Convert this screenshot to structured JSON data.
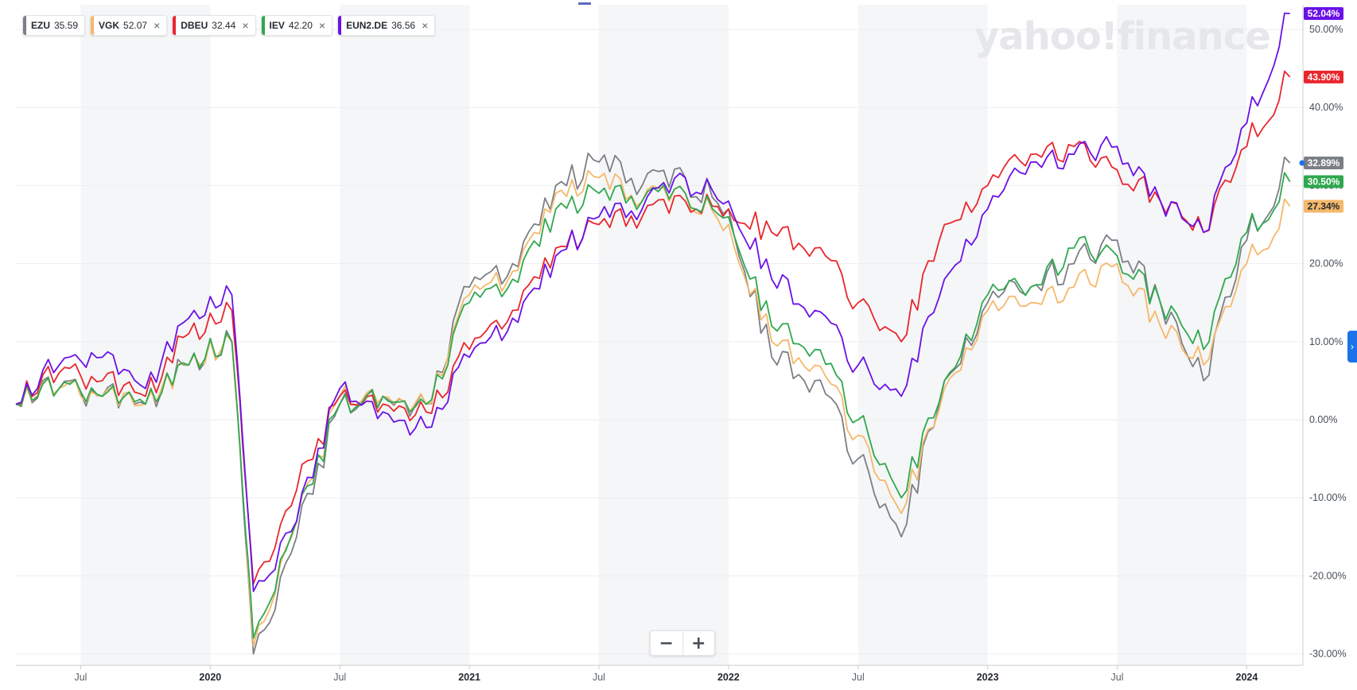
{
  "legend": [
    {
      "symbol": "EZU",
      "value": "35.59",
      "color": "#7b7f85",
      "closable": false
    },
    {
      "symbol": "VGK",
      "value": "52.07",
      "color": "#f5b86a",
      "closable": true
    },
    {
      "symbol": "DBEU",
      "value": "32.44",
      "color": "#e9262e",
      "closable": true
    },
    {
      "symbol": "IEV",
      "value": "42.20",
      "color": "#2fa84f",
      "closable": true
    },
    {
      "symbol": "EUN2.DE",
      "value": "36.56",
      "color": "#6a11e8",
      "closable": true
    }
  ],
  "watermark": "yahoo!finance",
  "zoom": {
    "minus": "−",
    "plus": "+"
  },
  "side_tab_icon": "chevron-right-icon",
  "chart_data": {
    "type": "line",
    "x_tick_labels": [
      "Jul",
      "2020",
      "Jul",
      "2021",
      "Jul",
      "2022",
      "Jul",
      "2023",
      "Jul",
      "2024"
    ],
    "y_tick_labels": [
      "50.00%",
      "40.00%",
      "30.00%",
      "20.00%",
      "10.00%",
      "0.00%",
      "-10.00%",
      "-20.00%",
      "-30.00%"
    ],
    "ylim": [
      -30,
      52
    ],
    "grid": true,
    "legend_position": "top-left",
    "series": [
      {
        "name": "EZU",
        "color": "#7b7f85",
        "last_label": "32.89%",
        "x": [
          "2019-04",
          "2019-06",
          "2019-08",
          "2019-10",
          "2019-12",
          "2020-02",
          "2020-03",
          "2020-05",
          "2020-07",
          "2020-09",
          "2020-11",
          "2021-01",
          "2021-03",
          "2021-05",
          "2021-07",
          "2021-09",
          "2021-11",
          "2022-01",
          "2022-03",
          "2022-05",
          "2022-07",
          "2022-09",
          "2022-11",
          "2023-01",
          "2023-03",
          "2023-05",
          "2023-07",
          "2023-09",
          "2023-11",
          "2024-01",
          "2024-03"
        ],
        "values": [
          2,
          4,
          3,
          2,
          7,
          10,
          -30,
          -15,
          2,
          3,
          2,
          17,
          20,
          30,
          33,
          30,
          31,
          27,
          8,
          5,
          -5,
          -15,
          5,
          15,
          17,
          20,
          23,
          15,
          5,
          23,
          32.89
        ]
      },
      {
        "name": "VGK",
        "color": "#f5b86a",
        "last_label": "27.34%",
        "x": [
          "2019-04",
          "2019-06",
          "2019-08",
          "2019-10",
          "2019-12",
          "2020-02",
          "2020-03",
          "2020-05",
          "2020-07",
          "2020-09",
          "2020-11",
          "2021-01",
          "2021-03",
          "2021-05",
          "2021-07",
          "2021-09",
          "2021-11",
          "2022-01",
          "2022-03",
          "2022-05",
          "2022-07",
          "2022-09",
          "2022-11",
          "2023-01",
          "2023-03",
          "2023-05",
          "2023-07",
          "2023-09",
          "2023-11",
          "2024-01",
          "2024-03"
        ],
        "values": [
          2,
          4,
          3,
          2,
          7,
          10,
          -29,
          -13,
          3,
          3,
          2,
          16,
          19,
          29,
          31,
          28,
          29,
          25,
          10,
          7,
          -2,
          -12,
          4,
          14,
          15,
          17,
          20,
          12,
          7,
          20,
          27.34
        ]
      },
      {
        "name": "DBEU",
        "color": "#e9262e",
        "last_label": "43.90%",
        "x": [
          "2019-04",
          "2019-06",
          "2019-08",
          "2019-10",
          "2019-12",
          "2020-02",
          "2020-03",
          "2020-05",
          "2020-07",
          "2020-09",
          "2020-11",
          "2021-01",
          "2021-03",
          "2021-05",
          "2021-07",
          "2021-09",
          "2021-11",
          "2022-01",
          "2022-03",
          "2022-05",
          "2022-07",
          "2022-09",
          "2022-11",
          "2023-01",
          "2023-03",
          "2023-05",
          "2023-07",
          "2023-09",
          "2023-11",
          "2024-01",
          "2024-03"
        ],
        "values": [
          2,
          6,
          5,
          3,
          11,
          14,
          -21,
          -9,
          3,
          2,
          1,
          9,
          14,
          22,
          25,
          26,
          28,
          27,
          24,
          22,
          15,
          10,
          25,
          30,
          34,
          35,
          32,
          28,
          24,
          35,
          43.9
        ]
      },
      {
        "name": "IEV",
        "color": "#2fa84f",
        "last_label": "30.50%",
        "x": [
          "2019-04",
          "2019-06",
          "2019-08",
          "2019-10",
          "2019-12",
          "2020-02",
          "2020-03",
          "2020-05",
          "2020-07",
          "2020-09",
          "2020-11",
          "2021-01",
          "2021-03",
          "2021-05",
          "2021-07",
          "2021-09",
          "2021-11",
          "2022-01",
          "2022-03",
          "2022-05",
          "2022-07",
          "2022-09",
          "2022-11",
          "2023-01",
          "2023-03",
          "2023-05",
          "2023-07",
          "2023-09",
          "2023-11",
          "2024-01",
          "2024-03"
        ],
        "values": [
          2,
          4,
          3,
          2,
          7,
          10,
          -28,
          -13,
          2,
          3,
          2,
          15,
          18,
          27,
          29,
          28,
          29,
          26,
          12,
          9,
          0,
          -10,
          5,
          16,
          17,
          22,
          21,
          15,
          9,
          24,
          30.5
        ]
      },
      {
        "name": "EUN2.DE",
        "color": "#6a11e8",
        "last_label": "52.04%",
        "x": [
          "2019-04",
          "2019-06",
          "2019-08",
          "2019-10",
          "2019-12",
          "2020-02",
          "2020-03",
          "2020-05",
          "2020-07",
          "2020-09",
          "2020-11",
          "2021-01",
          "2021-03",
          "2021-05",
          "2021-07",
          "2021-09",
          "2021-11",
          "2022-01",
          "2022-03",
          "2022-05",
          "2022-07",
          "2022-09",
          "2022-11",
          "2023-01",
          "2023-03",
          "2023-05",
          "2023-07",
          "2023-09",
          "2023-11",
          "2024-01",
          "2024-03"
        ],
        "values": [
          2,
          7,
          8,
          4,
          13,
          16,
          -22,
          -13,
          4,
          1,
          -1,
          8,
          13,
          21,
          26,
          27,
          31,
          28,
          18,
          14,
          7,
          3,
          18,
          27,
          33,
          34,
          35,
          28,
          24,
          38,
          52.04
        ]
      }
    ]
  }
}
